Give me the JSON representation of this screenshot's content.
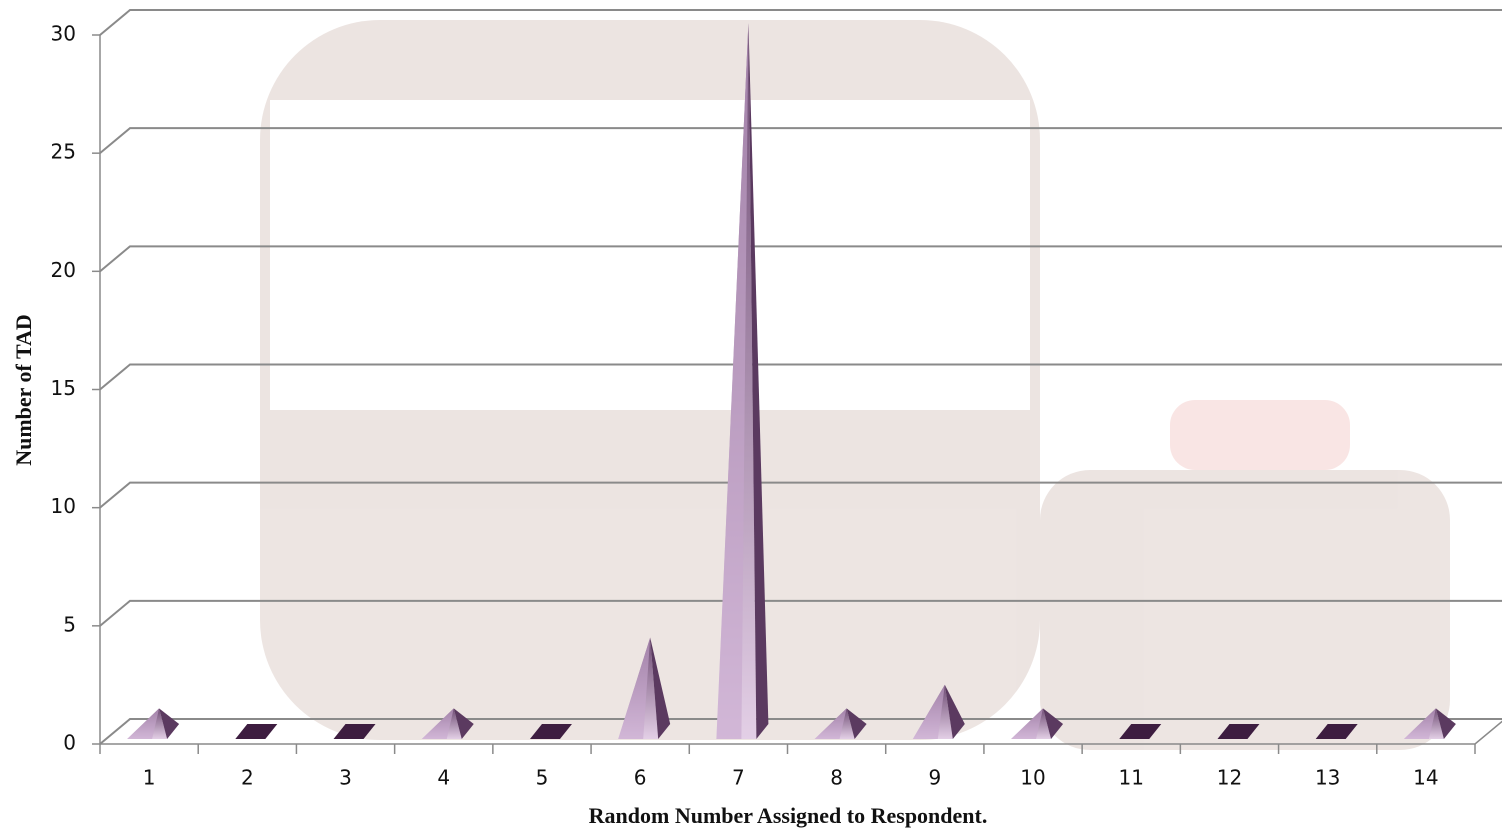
{
  "chart_data": {
    "type": "bar",
    "xlabel": "Random Number Assigned to Respondent.",
    "ylabel": "Number of TAD",
    "categories": [
      "1",
      "2",
      "3",
      "4",
      "5",
      "6",
      "7",
      "8",
      "9",
      "10",
      "11",
      "12",
      "13",
      "14"
    ],
    "values": [
      1,
      0,
      0,
      1,
      0,
      4,
      30,
      1,
      2,
      1,
      0,
      0,
      0,
      1
    ],
    "color": "#c7a6cd",
    "side_color": "#5b3a60",
    "ylim": [
      0,
      30
    ],
    "yticks": [
      0,
      5,
      10,
      15,
      20,
      25,
      30
    ],
    "grid": true
  }
}
